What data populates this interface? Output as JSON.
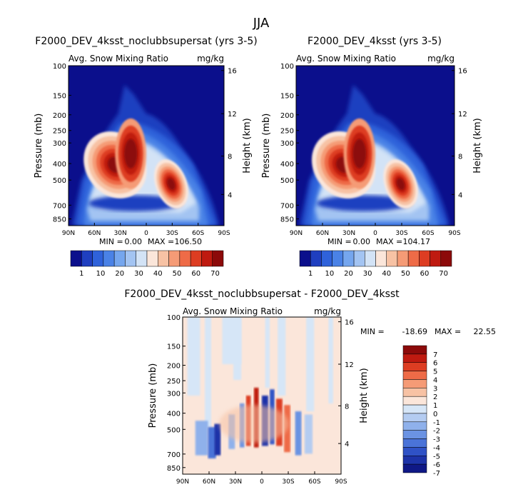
{
  "figure": {
    "title": "JJA"
  },
  "chart_data": [
    {
      "type": "heatmap",
      "title": "F2000_DEV_4ksst_noclubbsupersat (yrs 3-5)",
      "subtitle_left": "Avg. Snow Mixing Ratio",
      "subtitle_right": "mg/kg",
      "xlabel": "",
      "ylabel": "Pressure (mb)",
      "ylabel_right": "Height (km)",
      "x_ticks": [
        "90N",
        "60N",
        "30N",
        "0",
        "30S",
        "60S",
        "90S"
      ],
      "y_ticks": [
        "100",
        "150",
        "200",
        "250",
        "300",
        "400",
        "500",
        "700",
        "850"
      ],
      "y2_ticks": [
        "16",
        "12",
        "8",
        "4"
      ],
      "stats": {
        "min_label": "MIN =",
        "min": "0.00",
        "max_label": "MAX =",
        "max": "106.50"
      },
      "colorbar": {
        "labels": [
          "1",
          "10",
          "20",
          "30",
          "40",
          "50",
          "60",
          "70"
        ]
      }
    },
    {
      "type": "heatmap",
      "title": "F2000_DEV_4ksst (yrs 3-5)",
      "subtitle_left": "Avg. Snow Mixing Ratio",
      "subtitle_right": "mg/kg",
      "xlabel": "",
      "ylabel": "Pressure (mb)",
      "ylabel_right": "Height (km)",
      "x_ticks": [
        "90N",
        "60N",
        "30N",
        "0",
        "30S",
        "60S",
        "90S"
      ],
      "y_ticks": [
        "100",
        "150",
        "200",
        "250",
        "300",
        "400",
        "500",
        "700",
        "850"
      ],
      "y2_ticks": [
        "16",
        "12",
        "8",
        "4"
      ],
      "stats": {
        "min_label": "MIN =",
        "min": "0.00",
        "max_label": "MAX =",
        "max": "104.17"
      },
      "colorbar": {
        "labels": [
          "1",
          "10",
          "20",
          "30",
          "40",
          "50",
          "60",
          "70"
        ]
      }
    },
    {
      "type": "heatmap",
      "title": "F2000_DEV_4ksst_noclubbsupersat - F2000_DEV_4ksst",
      "subtitle_left": "Avg. Snow Mixing Ratio",
      "subtitle_right": "mg/kg",
      "xlabel": "",
      "ylabel": "Pressure (mb)",
      "ylabel_right": "Height (km)",
      "x_ticks": [
        "90N",
        "60N",
        "30N",
        "0",
        "30S",
        "60S",
        "90S"
      ],
      "y_ticks": [
        "100",
        "150",
        "200",
        "250",
        "300",
        "400",
        "500",
        "700",
        "850"
      ],
      "y2_ticks": [
        "16",
        "12",
        "8",
        "4"
      ],
      "stats": {
        "min_label": "MIN =",
        "min": "-18.69",
        "max_label": "MAX =",
        "max": "22.55"
      },
      "colorbar": {
        "labels": [
          "7",
          "6",
          "5",
          "4",
          "3",
          "2",
          "1",
          "0",
          "-1",
          "-2",
          "-3",
          "-4",
          "-5",
          "-6",
          "-7"
        ]
      }
    }
  ],
  "colors": {
    "seq_scale": [
      "#0b0f8c",
      "#1f3fc0",
      "#2f62da",
      "#4a82e6",
      "#75a6ee",
      "#a3c4f2",
      "#d3e3f6",
      "#fbe6da",
      "#f7c2a4",
      "#f59b76",
      "#ee6b47",
      "#dd3d22",
      "#bf1a10",
      "#8c0a0a"
    ],
    "diff_scale": [
      "#8c0a0a",
      "#bf1a10",
      "#dd3d22",
      "#ee6b47",
      "#f59b76",
      "#f7c2a4",
      "#fbe6da",
      "#d6e6f7",
      "#b4ccf1",
      "#8fb1eb",
      "#6b93e3",
      "#4a73d8",
      "#2f52c6",
      "#1d33a8",
      "#0f1886"
    ]
  }
}
